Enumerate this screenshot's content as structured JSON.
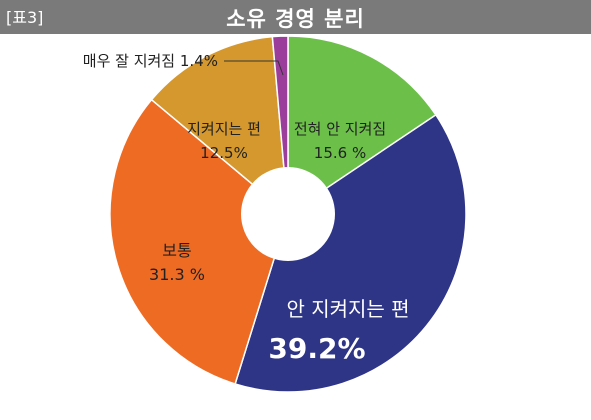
{
  "header": {
    "table_tag": "[표3]",
    "title": "소유 경영 분리"
  },
  "colors": {
    "header_bg": "#7a7a7a",
    "green": "#6cc04a",
    "navy": "#2e3486",
    "orange": "#ee6b24",
    "gold": "#d4982f",
    "purple": "#9b3e9b"
  },
  "chart_data": {
    "type": "pie",
    "style": "donut",
    "categories": [
      "전혀 안 지켜짐",
      "안 지켜지는 편",
      "보통",
      "지켜지는 편",
      "매우 잘 지켜짐"
    ],
    "values": [
      15.6,
      39.2,
      31.3,
      12.5,
      1.4
    ],
    "value_labels": [
      "15.6 %",
      "39.2%",
      "31.3 %",
      "12.5%",
      "1.4%"
    ],
    "colors": [
      "#6cc04a",
      "#2e3486",
      "#ee6b24",
      "#d4982f",
      "#9b3e9b"
    ],
    "start": "top",
    "direction": "clockwise"
  }
}
